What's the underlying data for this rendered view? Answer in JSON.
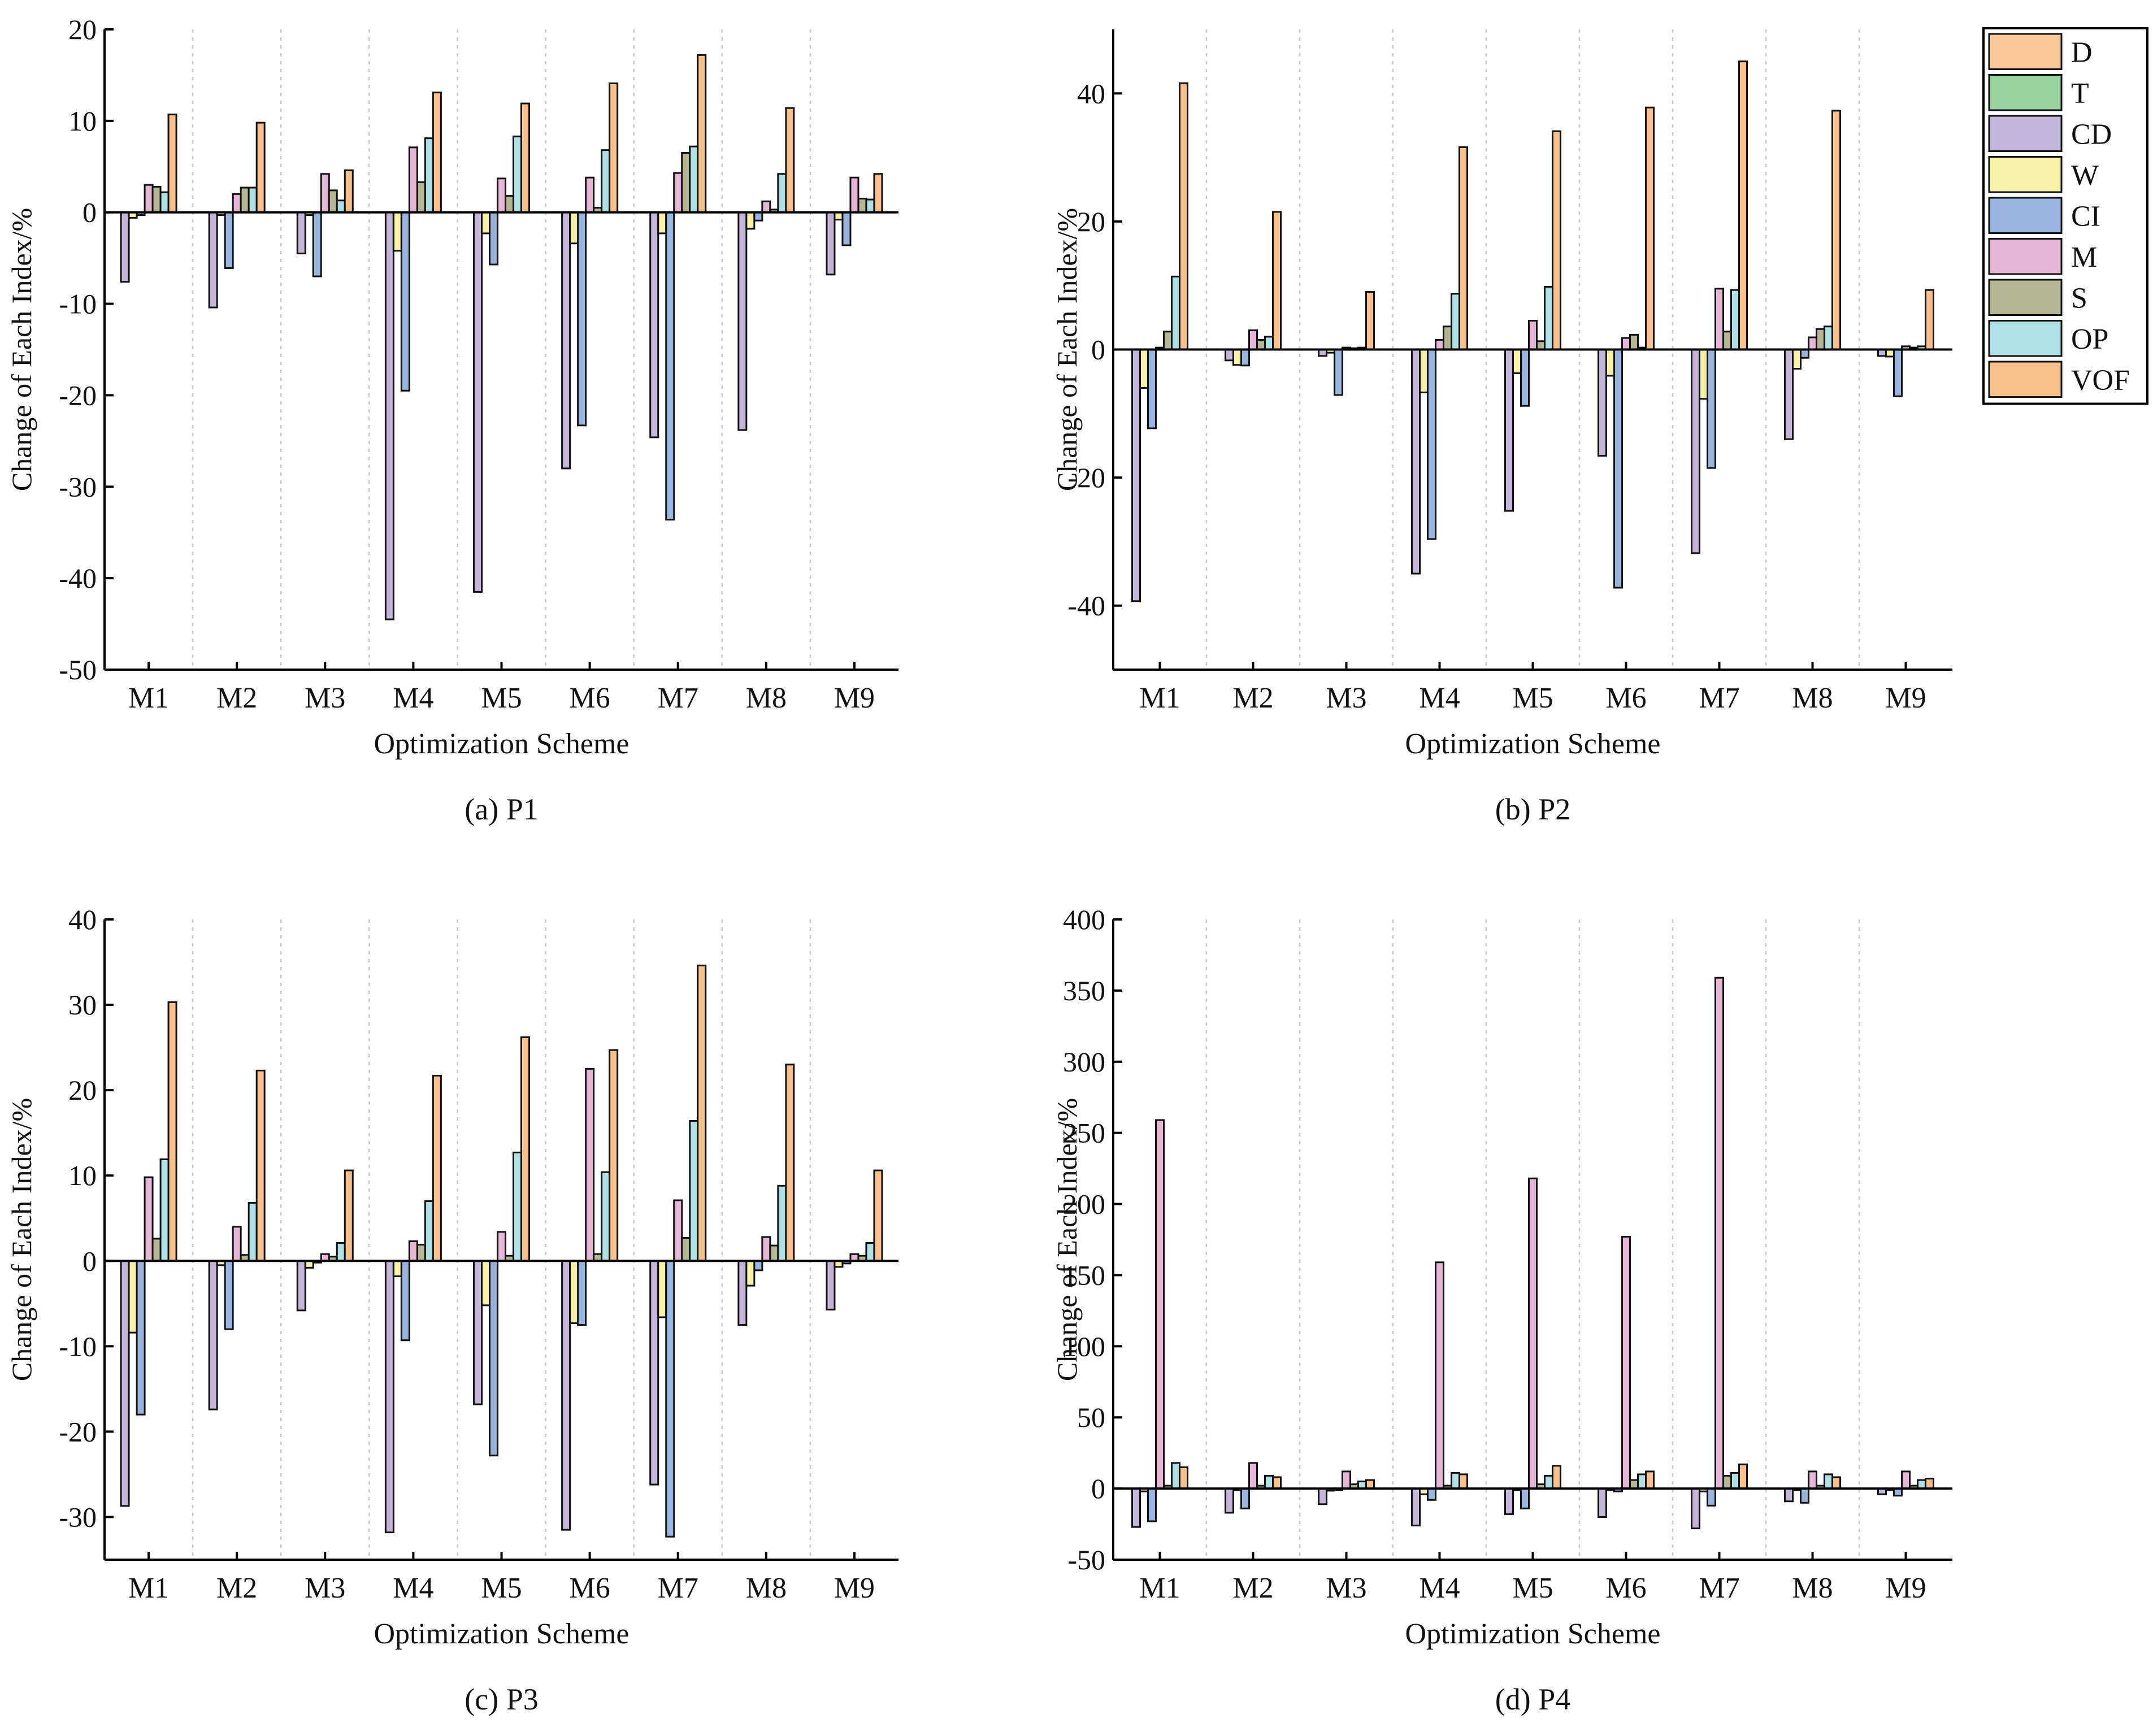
{
  "legend": {
    "items": [
      {
        "label": "D",
        "color": "#F8C89A"
      },
      {
        "label": "T",
        "color": "#96D19E"
      },
      {
        "label": "CD",
        "color": "#C3B6DA"
      },
      {
        "label": "W",
        "color": "#F6F1A6"
      },
      {
        "label": "CI",
        "color": "#9AB4E0"
      },
      {
        "label": "M",
        "color": "#E6B6D6"
      },
      {
        "label": "S",
        "color": "#B4B694"
      },
      {
        "label": "OP",
        "color": "#AEE0E6"
      },
      {
        "label": "VOF",
        "color": "#F8C08A"
      }
    ]
  },
  "chart_data": [
    {
      "type": "bar",
      "caption": "(a) P1",
      "xlabel": "Optimization Scheme",
      "ylabel": "Change of Each Index/%",
      "ylim": [
        -50,
        20
      ],
      "yticks": [
        -50,
        -40,
        -30,
        -20,
        -10,
        0,
        10,
        20
      ],
      "categories": [
        "M1",
        "M2",
        "M3",
        "M4",
        "M5",
        "M6",
        "M7",
        "M8",
        "M9"
      ],
      "series": [
        {
          "name": "CD",
          "values": [
            -7.6,
            -10.4,
            -4.5,
            -44.5,
            -41.5,
            -28,
            -24.6,
            -23.8,
            -6.8
          ]
        },
        {
          "name": "W",
          "values": [
            -0.6,
            -0.3,
            -0.3,
            -4.2,
            -2.3,
            -3.4,
            -2.3,
            -1.8,
            -0.8
          ]
        },
        {
          "name": "CI",
          "values": [
            -0.3,
            -6.1,
            -7,
            -19.5,
            -5.7,
            -23.3,
            -33.6,
            -0.9,
            -3.6
          ]
        },
        {
          "name": "M",
          "values": [
            3,
            2,
            4.2,
            7.1,
            3.7,
            3.8,
            4.3,
            1.2,
            3.8
          ]
        },
        {
          "name": "S",
          "values": [
            2.8,
            2.7,
            2.4,
            3.3,
            1.8,
            0.5,
            6.5,
            0.3,
            1.5
          ]
        },
        {
          "name": "OP",
          "values": [
            2.2,
            2.7,
            1.3,
            8.1,
            8.3,
            6.8,
            7.2,
            4.2,
            1.4
          ]
        },
        {
          "name": "VOF",
          "values": [
            10.7,
            9.8,
            4.6,
            13.1,
            11.9,
            14.1,
            17.2,
            11.4,
            4.2
          ]
        }
      ]
    },
    {
      "type": "bar",
      "caption": "(b) P2",
      "xlabel": "Optimization Scheme",
      "ylabel": "Change of Each Index/%",
      "ylim": [
        -50,
        50
      ],
      "yticks": [
        -40,
        -20,
        0,
        20,
        40
      ],
      "categories": [
        "M1",
        "M2",
        "M3",
        "M4",
        "M5",
        "M6",
        "M7",
        "M8",
        "M9"
      ],
      "series": [
        {
          "name": "CD",
          "values": [
            -39.3,
            -1.7,
            -1,
            -35,
            -25.2,
            -16.6,
            -31.8,
            -14,
            -1
          ]
        },
        {
          "name": "W",
          "values": [
            -6,
            -2.4,
            -0.5,
            -6.7,
            -3.7,
            -4.1,
            -7.7,
            -3,
            -1.1
          ]
        },
        {
          "name": "CI",
          "values": [
            -12.3,
            -2.5,
            -7.1,
            -29.6,
            -8.8,
            -37.2,
            -18.5,
            -1.3,
            -7.3
          ]
        },
        {
          "name": "M",
          "values": [
            0.3,
            3,
            0.3,
            1.5,
            4.5,
            1.8,
            9.5,
            1.9,
            0.5
          ]
        },
        {
          "name": "S",
          "values": [
            2.8,
            1.5,
            0.2,
            3.6,
            1.3,
            2.3,
            2.8,
            3.2,
            0.3
          ]
        },
        {
          "name": "OP",
          "values": [
            11.4,
            2,
            0.3,
            8.7,
            9.8,
            0.3,
            9.3,
            3.6,
            0.5
          ]
        },
        {
          "name": "VOF",
          "values": [
            41.6,
            21.5,
            9,
            31.6,
            34.1,
            37.8,
            45,
            37.3,
            9.3
          ]
        }
      ]
    },
    {
      "type": "bar",
      "caption": "(c) P3",
      "xlabel": "Optimization Scheme",
      "ylabel": "Change of Each Index/%",
      "ylim": [
        -35,
        40
      ],
      "yticks": [
        -30,
        -20,
        -10,
        0,
        10,
        20,
        30,
        40
      ],
      "categories": [
        "M1",
        "M2",
        "M3",
        "M4",
        "M5",
        "M6",
        "M7",
        "M8",
        "M9"
      ],
      "series": [
        {
          "name": "CD",
          "values": [
            -28.7,
            -17.4,
            -5.8,
            -31.8,
            -16.8,
            -31.5,
            -26.2,
            -7.5,
            -5.7
          ]
        },
        {
          "name": "W",
          "values": [
            -8.4,
            -0.5,
            -0.8,
            -1.8,
            -5.2,
            -7.3,
            -6.6,
            -2.9,
            -0.7
          ]
        },
        {
          "name": "CI",
          "values": [
            -18,
            -8,
            -0.2,
            -9.3,
            -22.8,
            -7.5,
            -32.3,
            -1.1,
            -0.3
          ]
        },
        {
          "name": "M",
          "values": [
            9.8,
            4,
            0.8,
            2.3,
            3.4,
            22.5,
            7.1,
            2.8,
            0.8
          ]
        },
        {
          "name": "S",
          "values": [
            2.6,
            0.7,
            0.5,
            1.9,
            0.6,
            0.8,
            2.7,
            1.8,
            0.6
          ]
        },
        {
          "name": "OP",
          "values": [
            11.9,
            6.8,
            2.1,
            7,
            12.7,
            10.4,
            16.4,
            8.8,
            2.1
          ]
        },
        {
          "name": "VOF",
          "values": [
            30.3,
            22.3,
            10.6,
            21.7,
            26.2,
            24.7,
            34.6,
            23,
            10.6
          ]
        }
      ]
    },
    {
      "type": "bar",
      "caption": "(d) P4",
      "xlabel": "Optimization Scheme",
      "ylabel": "Change of Each Index/%",
      "ylim": [
        -50,
        400
      ],
      "yticks": [
        -50,
        0,
        50,
        100,
        150,
        200,
        250,
        300,
        350,
        400
      ],
      "categories": [
        "M1",
        "M2",
        "M3",
        "M4",
        "M5",
        "M6",
        "M7",
        "M8",
        "M9"
      ],
      "series": [
        {
          "name": "CD",
          "values": [
            -27,
            -17,
            -11,
            -26,
            -18,
            -20,
            -28,
            -9,
            -4
          ]
        },
        {
          "name": "W",
          "values": [
            -2,
            -1,
            -1.5,
            -4,
            -1,
            -1,
            -2,
            -1,
            -1
          ]
        },
        {
          "name": "CI",
          "values": [
            -23,
            -14,
            -1,
            -8,
            -14,
            -2,
            -12,
            -10,
            -5
          ]
        },
        {
          "name": "M",
          "values": [
            259,
            18,
            12,
            159,
            218,
            177,
            359,
            12,
            12
          ]
        },
        {
          "name": "S",
          "values": [
            2,
            2,
            3,
            2,
            3,
            6,
            9,
            2,
            2
          ]
        },
        {
          "name": "OP",
          "values": [
            18,
            9,
            5,
            11,
            9,
            10,
            11,
            10,
            6
          ]
        },
        {
          "name": "VOF",
          "values": [
            15,
            8,
            6,
            10,
            16,
            12,
            17,
            8,
            7
          ]
        }
      ]
    }
  ]
}
